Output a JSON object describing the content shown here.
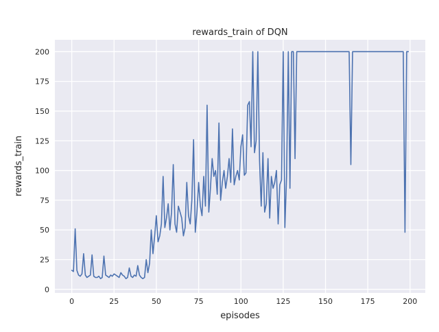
{
  "chart_data": {
    "type": "line",
    "title": "rewards_train of DQN",
    "xlabel": "episodes",
    "ylabel": "rewards_train",
    "xlim": [
      -10,
      209
    ],
    "ylim": [
      -3,
      210
    ],
    "xticks": [
      0,
      25,
      50,
      75,
      100,
      125,
      150,
      175,
      200
    ],
    "yticks": [
      0,
      25,
      50,
      75,
      100,
      125,
      150,
      175,
      200
    ],
    "grid": true,
    "legend": false,
    "style": {
      "line_color": "#4c72b0",
      "axes_background": "#eaeaf2",
      "grid_color": "#ffffff",
      "text_color": "#262626",
      "figure_background": "#ffffff"
    },
    "series": [
      {
        "name": "rewards_train",
        "x_start": 0,
        "x_step": 1,
        "values": [
          16,
          15,
          51,
          16,
          12,
          11,
          13,
          30,
          12,
          10,
          11,
          12,
          29,
          11,
          10,
          10,
          11,
          9,
          10,
          28,
          12,
          11,
          10,
          12,
          11,
          13,
          12,
          11,
          10,
          14,
          12,
          11,
          9,
          10,
          18,
          11,
          10,
          12,
          11,
          20,
          12,
          10,
          9,
          10,
          25,
          14,
          22,
          50,
          30,
          45,
          62,
          40,
          45,
          55,
          95,
          52,
          60,
          72,
          50,
          65,
          105,
          55,
          48,
          70,
          65,
          60,
          45,
          52,
          90,
          62,
          55,
          75,
          126,
          48,
          65,
          90,
          70,
          62,
          95,
          70,
          155,
          65,
          85,
          110,
          95,
          100,
          80,
          140,
          75,
          90,
          100,
          85,
          95,
          110,
          90,
          135,
          88,
          95,
          100,
          92,
          120,
          130,
          96,
          98,
          155,
          158,
          120,
          200,
          115,
          125,
          200,
          108,
          70,
          115,
          65,
          72,
          110,
          60,
          95,
          85,
          90,
          100,
          55,
          88,
          92,
          200,
          52,
          95,
          200,
          85,
          200,
          200,
          110,
          200,
          200,
          200,
          200,
          200,
          200,
          200,
          200,
          200,
          200,
          200,
          200,
          200,
          200,
          200,
          200,
          200,
          200,
          200,
          200,
          200,
          200,
          200,
          200,
          200,
          200,
          200,
          200,
          200,
          200,
          200,
          200,
          105,
          200,
          200,
          200,
          200,
          200,
          200,
          200,
          200,
          200,
          200,
          200,
          200,
          200,
          200,
          200,
          200,
          200,
          200,
          200,
          200,
          200,
          200,
          200,
          200,
          200,
          200,
          200,
          200,
          200,
          200,
          200,
          48,
          200,
          200
        ]
      }
    ]
  }
}
